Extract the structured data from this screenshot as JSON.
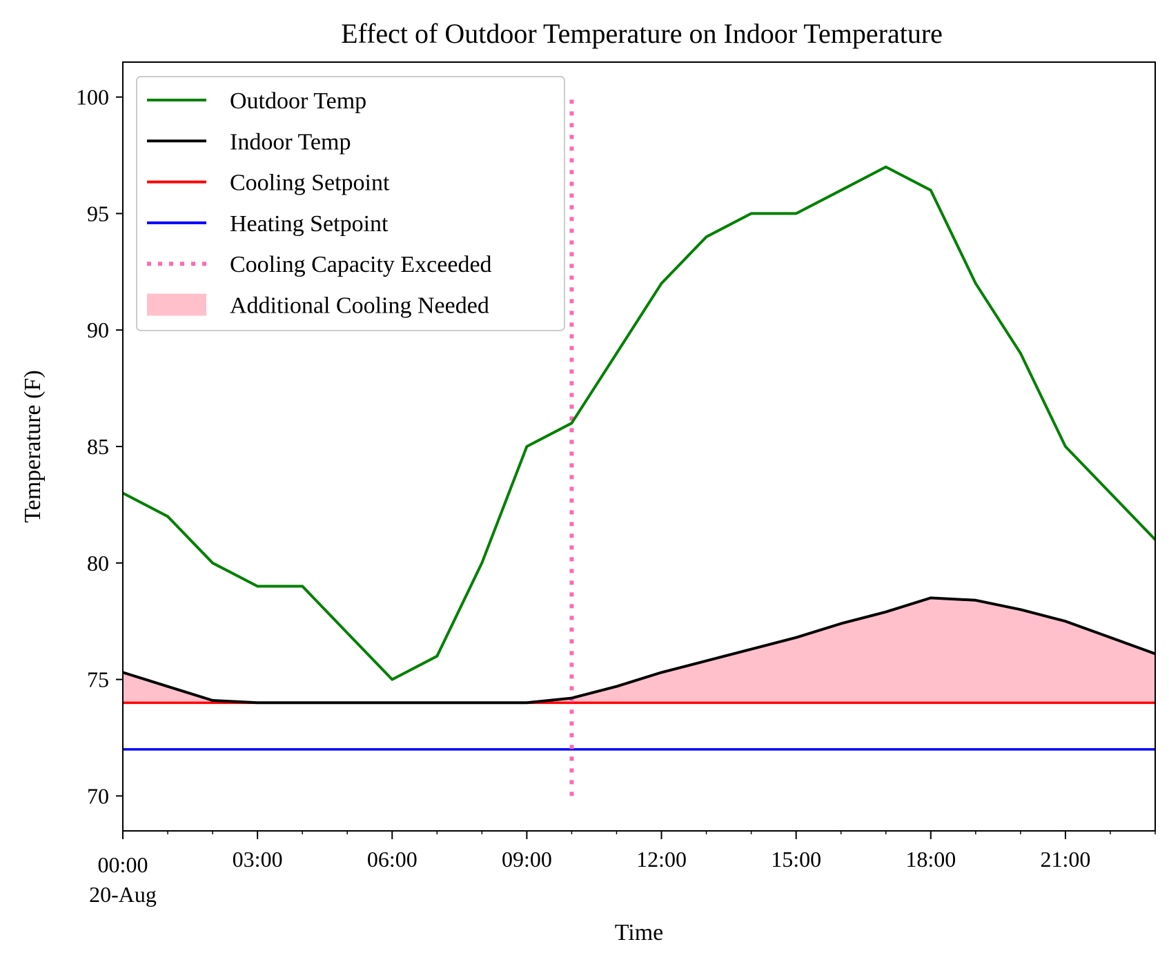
{
  "chart_data": {
    "type": "line",
    "title": "Effect of Outdoor Temperature on Indoor Temperature",
    "xlabel": "Time",
    "ylabel": "Temperature (F)",
    "x": [
      "00:00",
      "01:00",
      "02:00",
      "03:00",
      "04:00",
      "05:00",
      "06:00",
      "07:00",
      "08:00",
      "09:00",
      "10:00",
      "11:00",
      "12:00",
      "13:00",
      "14:00",
      "15:00",
      "16:00",
      "17:00",
      "18:00",
      "19:00",
      "20:00",
      "21:00",
      "22:00",
      "23:00"
    ],
    "x_ticks": [
      {
        "hour": 0,
        "label": "00:00",
        "sublabel": "20-Aug"
      },
      {
        "hour": 3,
        "label": "03:00"
      },
      {
        "hour": 6,
        "label": "06:00"
      },
      {
        "hour": 9,
        "label": "09:00"
      },
      {
        "hour": 12,
        "label": "12:00"
      },
      {
        "hour": 15,
        "label": "15:00"
      },
      {
        "hour": 18,
        "label": "18:00"
      },
      {
        "hour": 21,
        "label": "21:00"
      }
    ],
    "xlim": [
      0,
      23
    ],
    "ylim": [
      68.5,
      101.5
    ],
    "y_ticks": [
      70,
      75,
      80,
      85,
      90,
      95,
      100
    ],
    "grid": false,
    "legend_position": "top-left",
    "series": [
      {
        "name": "Outdoor Temp",
        "color": "#008000",
        "style": "solid",
        "values": [
          83,
          82,
          80,
          79,
          79,
          77,
          75,
          76,
          80,
          85,
          86,
          89,
          92,
          94,
          95,
          95,
          96,
          97,
          96,
          92,
          89,
          85,
          83,
          81
        ]
      },
      {
        "name": "Indoor Temp",
        "color": "#000000",
        "style": "solid",
        "values": [
          75.3,
          74.7,
          74.1,
          74.0,
          74.0,
          74.0,
          74.0,
          74.0,
          74.0,
          74.0,
          74.2,
          74.7,
          75.3,
          75.8,
          76.3,
          76.8,
          77.4,
          77.9,
          78.5,
          78.4,
          78.0,
          77.5,
          76.8,
          76.1
        ]
      },
      {
        "name": "Cooling Setpoint",
        "color": "#ff0000",
        "style": "solid",
        "value": 74
      },
      {
        "name": "Heating Setpoint",
        "color": "#0000ff",
        "style": "solid",
        "value": 72
      }
    ],
    "markers": [
      {
        "name": "Cooling Capacity Exceeded",
        "color": "#ff69b4",
        "style": "dotted",
        "x_hour": 10,
        "y_range": [
          70,
          100
        ]
      }
    ],
    "fill": {
      "name": "Additional Cooling Needed",
      "color": "#ffc0cb",
      "between": [
        "Indoor Temp",
        "Cooling Setpoint"
      ]
    }
  }
}
